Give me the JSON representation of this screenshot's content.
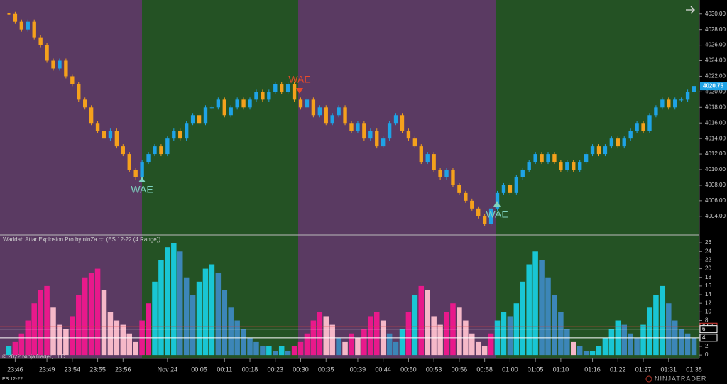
{
  "chart_data": [
    {
      "type": "candlestick",
      "categories": [
        null,
        "23:46",
        null,
        null,
        null,
        null,
        "23:49",
        null,
        null,
        null,
        "23:54",
        null,
        null,
        null,
        "23:55",
        null,
        null,
        null,
        "23:56",
        null,
        null,
        null,
        null,
        null,
        null,
        "Nov 24",
        null,
        null,
        null,
        null,
        "00:05",
        null,
        null,
        null,
        "00:11",
        null,
        null,
        null,
        "00:18",
        null,
        null,
        null,
        "00:23",
        null,
        null,
        null,
        "00:30",
        null,
        null,
        null,
        "00:35",
        null,
        null,
        null,
        null,
        "00:39",
        null,
        null,
        null,
        "00:44",
        null,
        null,
        null,
        "00:50",
        null,
        null,
        null,
        "00:53",
        null,
        null,
        null,
        "00:56",
        null,
        null,
        null,
        "00:58",
        null,
        null,
        null,
        "01:00",
        null,
        null,
        null,
        "01:05",
        null,
        null,
        null,
        "01:10",
        null,
        null,
        null,
        null,
        "01:16",
        null,
        null,
        null,
        "01:22",
        null,
        null,
        null,
        "01:27",
        null,
        null,
        null,
        "01:31",
        null,
        null,
        null,
        "01:38"
      ],
      "values": [
        4030,
        4029,
        4028,
        4029,
        4027,
        4026,
        4024,
        4023,
        4024,
        4022,
        4021,
        4019,
        4018,
        4016,
        4015,
        4014,
        4015,
        4013,
        4012,
        4010,
        4009,
        4011,
        4012,
        4013,
        4012,
        4014,
        4015,
        4014,
        4016,
        4017,
        4016,
        4018,
        4018,
        4019,
        4017,
        4018,
        4019,
        4018,
        4019,
        4020,
        4019,
        4020,
        4021,
        4020,
        4021,
        4019,
        4018,
        4019,
        4017,
        4018,
        4016,
        4017,
        4018,
        4016,
        4015,
        4016,
        4014,
        4015,
        4013,
        4014,
        4016,
        4017,
        4015,
        4014,
        4013,
        4011,
        4012,
        4010,
        4009,
        4010,
        4008,
        4007,
        4006,
        4005,
        4004,
        4003,
        4005,
        4007,
        4008,
        4007,
        4009,
        4010,
        4011,
        4012,
        4011,
        4012,
        4011,
        4010,
        4011,
        4010,
        4011,
        4012,
        4013,
        4012,
        4013,
        4014,
        4013,
        4014,
        4015,
        4016,
        4015,
        4017,
        4018,
        4019,
        4018,
        4019,
        4019,
        4020,
        4020.75
      ],
      "up_color": "#1fa3e6",
      "down_color": "#f5a11c",
      "ylim": [
        4001.7,
        4031.8
      ],
      "yticks": [
        {
          "value": 4004,
          "label": "4004.00"
        },
        {
          "value": 4006,
          "label": "4006.00"
        },
        {
          "value": 4008,
          "label": "4008.00"
        },
        {
          "value": 4010,
          "label": "4010.00"
        },
        {
          "value": 4012,
          "label": "4012.00"
        },
        {
          "value": 4014,
          "label": "4014.00"
        },
        {
          "value": 4016,
          "label": "4016.00"
        },
        {
          "value": 4018,
          "label": "4018.00"
        },
        {
          "value": 4020,
          "label": "4020.00"
        },
        {
          "value": 4022,
          "label": "4022.00"
        },
        {
          "value": 4024,
          "label": "4024.00"
        },
        {
          "value": 4026,
          "label": "4026.00"
        },
        {
          "value": 4028,
          "label": "4028.00"
        },
        {
          "value": 4030,
          "label": "4030.00"
        }
      ],
      "annotations": [
        "WAE",
        "WAE",
        "WAE"
      ]
    },
    {
      "type": "bar",
      "title": "Waddah Attar Explosion Pro by ninZa.co (ES 12-22 (4 Range))",
      "values": [
        2,
        3,
        5,
        8,
        12,
        15,
        16,
        11,
        7,
        6,
        9,
        14,
        18,
        19,
        20,
        15,
        10,
        8,
        7,
        5,
        3,
        8,
        12,
        17,
        22,
        25,
        26,
        24,
        18,
        14,
        17,
        20,
        21,
        19,
        15,
        11,
        8,
        6,
        4,
        3,
        2,
        2,
        1,
        2,
        1,
        2,
        3,
        5,
        8,
        10,
        9,
        7,
        4,
        3,
        5,
        4,
        6,
        9,
        10,
        8,
        5,
        3,
        6,
        10,
        14,
        16,
        15,
        9,
        7,
        10,
        12,
        11,
        8,
        5,
        3,
        2,
        5,
        8,
        10,
        9,
        12,
        17,
        21,
        24,
        22,
        18,
        14,
        10,
        6,
        3,
        2,
        1,
        1,
        2,
        4,
        6,
        8,
        7,
        5,
        4,
        7,
        11,
        14,
        16,
        12,
        8,
        6,
        5,
        4
      ],
      "colors": {
        "up_rising": "#19c6d4",
        "up_falling": "#3c86b8",
        "down_rising": "#e8198b",
        "down_falling": "#f5b8c8"
      },
      "ylim": [
        -0.8,
        27.5
      ],
      "yticks": [
        0,
        2,
        4,
        6,
        8,
        10,
        12,
        14,
        16,
        18,
        20,
        22,
        24,
        26
      ],
      "levels": [
        {
          "value": 6.56,
          "color": "#e0403a"
        },
        {
          "value": 6,
          "color": "#ffffff"
        },
        {
          "value": 4,
          "color": "#ffffff"
        }
      ]
    }
  ],
  "copyright": "© 2022 NinjaTrader, LLC",
  "instrument": "ES 12-22",
  "logo": "NINJATRADER"
}
